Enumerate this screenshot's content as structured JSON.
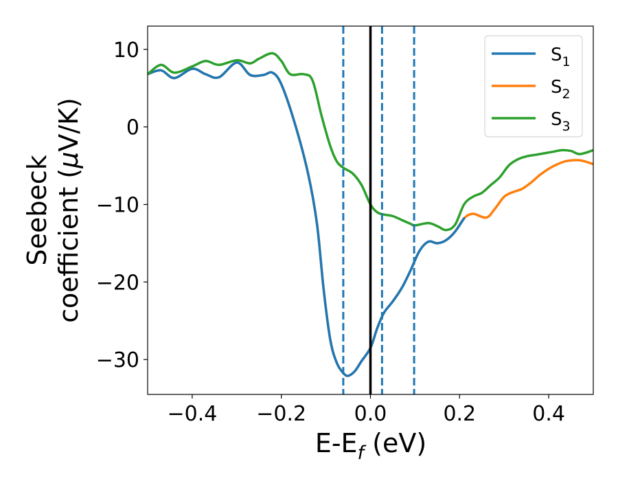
{
  "chart_data": {
    "type": "line",
    "xlabel": {
      "main": "E-E",
      "sub": "f",
      "rest": " (eV)"
    },
    "ylabel": {
      "line1": "Seebeck",
      "line2_pre": "coefficient  (",
      "mu": "μ",
      "line2_post": "V/K)"
    },
    "xlim": [
      -0.5,
      0.5
    ],
    "ylim": [
      -34.5,
      13
    ],
    "xticks": [
      -0.4,
      -0.2,
      0.0,
      0.2,
      0.4
    ],
    "xtick_labels": [
      "−0.4",
      "−0.2",
      "0.0",
      "0.2",
      "0.4"
    ],
    "yticks": [
      10,
      0,
      -10,
      -20,
      -30
    ],
    "ytick_labels": [
      "10",
      "0",
      "−10",
      "−20",
      "−30"
    ],
    "grid": false,
    "legend_position": "top-right",
    "legend": [
      {
        "base": "S",
        "sub": "1",
        "color": "#1f77b4"
      },
      {
        "base": "S",
        "sub": "2",
        "color": "#ff7f0e"
      },
      {
        "base": "S",
        "sub": "3",
        "color": "#2ca02c"
      }
    ],
    "vlines": [
      {
        "x": 0.0,
        "style": "solid",
        "color": "#000000"
      },
      {
        "x": -0.061,
        "style": "dashed",
        "color": "#1f77b4"
      },
      {
        "x": 0.026,
        "style": "dashed",
        "color": "#1f77b4"
      },
      {
        "x": 0.098,
        "style": "dashed",
        "color": "#1f77b4"
      }
    ],
    "series": [
      {
        "name": "S2",
        "color": "#ff7f0e",
        "points": [
          [
            -0.5,
            6.8
          ],
          [
            -0.47,
            7.3
          ],
          [
            -0.44,
            6.3
          ],
          [
            -0.4,
            7.5
          ],
          [
            -0.37,
            6.8
          ],
          [
            -0.34,
            6.4
          ],
          [
            -0.3,
            8.3
          ],
          [
            -0.27,
            6.7
          ],
          [
            -0.24,
            6.7
          ],
          [
            -0.22,
            7.0
          ],
          [
            -0.2,
            5.5
          ],
          [
            -0.17,
            0.5
          ],
          [
            -0.14,
            -6.0
          ],
          [
            -0.12,
            -12.5
          ],
          [
            -0.105,
            -21.0
          ],
          [
            -0.09,
            -27.5
          ],
          [
            -0.075,
            -30.5
          ],
          [
            -0.06,
            -31.8
          ],
          [
            -0.05,
            -32.1
          ],
          [
            -0.035,
            -31.5
          ],
          [
            -0.02,
            -30.2
          ],
          [
            0.0,
            -28.5
          ],
          [
            0.015,
            -26.0
          ],
          [
            0.03,
            -24.0
          ],
          [
            0.05,
            -22.5
          ],
          [
            0.07,
            -20.8
          ],
          [
            0.09,
            -18.5
          ],
          [
            0.11,
            -16.0
          ],
          [
            0.13,
            -14.8
          ],
          [
            0.15,
            -15.0
          ],
          [
            0.17,
            -14.6
          ],
          [
            0.19,
            -13.5
          ],
          [
            0.21,
            -11.8
          ],
          [
            0.23,
            -11.2
          ],
          [
            0.26,
            -11.7
          ],
          [
            0.28,
            -10.5
          ],
          [
            0.3,
            -9.0
          ],
          [
            0.32,
            -8.4
          ],
          [
            0.34,
            -8.0
          ],
          [
            0.36,
            -7.2
          ],
          [
            0.38,
            -6.2
          ],
          [
            0.4,
            -5.4
          ],
          [
            0.42,
            -4.8
          ],
          [
            0.44,
            -4.4
          ],
          [
            0.47,
            -4.3
          ],
          [
            0.5,
            -4.8
          ]
        ]
      },
      {
        "name": "S1",
        "color": "#1f77b4",
        "points": [
          [
            -0.5,
            6.8
          ],
          [
            -0.47,
            7.3
          ],
          [
            -0.44,
            6.3
          ],
          [
            -0.4,
            7.5
          ],
          [
            -0.37,
            6.8
          ],
          [
            -0.34,
            6.4
          ],
          [
            -0.3,
            8.3
          ],
          [
            -0.27,
            6.7
          ],
          [
            -0.24,
            6.7
          ],
          [
            -0.22,
            7.0
          ],
          [
            -0.2,
            5.5
          ],
          [
            -0.17,
            0.5
          ],
          [
            -0.14,
            -6.0
          ],
          [
            -0.12,
            -12.5
          ],
          [
            -0.105,
            -21.0
          ],
          [
            -0.09,
            -27.5
          ],
          [
            -0.075,
            -30.5
          ],
          [
            -0.06,
            -31.8
          ],
          [
            -0.05,
            -32.1
          ],
          [
            -0.035,
            -31.5
          ],
          [
            -0.02,
            -30.2
          ],
          [
            0.0,
            -28.5
          ],
          [
            0.015,
            -26.0
          ],
          [
            0.03,
            -24.0
          ],
          [
            0.05,
            -22.5
          ],
          [
            0.07,
            -20.8
          ],
          [
            0.09,
            -18.5
          ],
          [
            0.11,
            -16.0
          ],
          [
            0.13,
            -14.8
          ],
          [
            0.15,
            -15.0
          ],
          [
            0.17,
            -14.6
          ],
          [
            0.19,
            -13.5
          ],
          [
            0.21,
            -11.8
          ]
        ]
      },
      {
        "name": "S3",
        "color": "#2ca02c",
        "points": [
          [
            -0.5,
            6.8
          ],
          [
            -0.47,
            8.0
          ],
          [
            -0.44,
            7.0
          ],
          [
            -0.4,
            7.8
          ],
          [
            -0.37,
            8.5
          ],
          [
            -0.34,
            8.0
          ],
          [
            -0.3,
            8.6
          ],
          [
            -0.27,
            8.2
          ],
          [
            -0.25,
            8.8
          ],
          [
            -0.22,
            9.5
          ],
          [
            -0.2,
            8.5
          ],
          [
            -0.18,
            6.8
          ],
          [
            -0.15,
            6.8
          ],
          [
            -0.13,
            6.0
          ],
          [
            -0.11,
            1.5
          ],
          [
            -0.09,
            -2.5
          ],
          [
            -0.075,
            -4.5
          ],
          [
            -0.06,
            -5.3
          ],
          [
            -0.04,
            -6.0
          ],
          [
            -0.02,
            -7.5
          ],
          [
            0.0,
            -10.0
          ],
          [
            0.015,
            -11.0
          ],
          [
            0.03,
            -11.3
          ],
          [
            0.05,
            -11.5
          ],
          [
            0.07,
            -12.0
          ],
          [
            0.09,
            -12.5
          ],
          [
            0.1,
            -12.7
          ],
          [
            0.13,
            -12.4
          ],
          [
            0.15,
            -12.8
          ],
          [
            0.17,
            -13.3
          ],
          [
            0.19,
            -12.6
          ],
          [
            0.21,
            -10.0
          ],
          [
            0.23,
            -9.0
          ],
          [
            0.25,
            -8.5
          ],
          [
            0.27,
            -7.5
          ],
          [
            0.29,
            -6.5
          ],
          [
            0.31,
            -5.0
          ],
          [
            0.33,
            -4.2
          ],
          [
            0.35,
            -3.8
          ],
          [
            0.37,
            -3.6
          ],
          [
            0.39,
            -3.4
          ],
          [
            0.41,
            -3.2
          ],
          [
            0.43,
            -3.0
          ],
          [
            0.45,
            -3.1
          ],
          [
            0.47,
            -3.5
          ],
          [
            0.5,
            -3.0
          ]
        ]
      }
    ]
  }
}
